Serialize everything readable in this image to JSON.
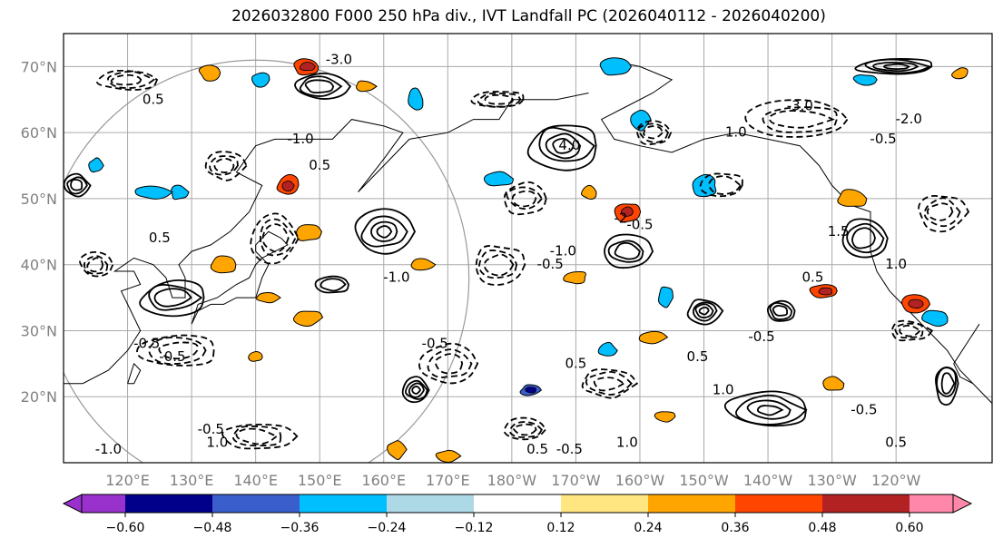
{
  "title": "2026032800 F000 250 hPa div., IVT Landfall PC (2026040112 - 2026040200)",
  "chart_data": {
    "type": "contour",
    "variable": "250 hPa divergence with IVT landfall PC contours",
    "lat_ticks": [
      "20°N",
      "30°N",
      "40°N",
      "50°N",
      "60°N",
      "70°N"
    ],
    "lon_ticks": [
      "120°E",
      "130°E",
      "140°E",
      "150°E",
      "160°E",
      "170°E",
      "180°W",
      "170°W",
      "160°W",
      "150°W",
      "140°W",
      "130°W",
      "120°W"
    ],
    "contour_labels": [
      {
        "text": "-3.0",
        "lon": 153,
        "lat": 71
      },
      {
        "text": "0.5",
        "lon": 124,
        "lat": 65
      },
      {
        "text": "0.5",
        "lon": 150,
        "lat": 55
      },
      {
        "text": "-1.0",
        "lon": 147,
        "lat": 59
      },
      {
        "text": "4.0",
        "lon": -171,
        "lat": 58
      },
      {
        "text": "-3.0",
        "lon": -135,
        "lat": 64
      },
      {
        "text": "-2.0",
        "lon": -118,
        "lat": 62
      },
      {
        "text": "-0.5",
        "lon": -122,
        "lat": 59
      },
      {
        "text": "1.0",
        "lon": -145,
        "lat": 60
      },
      {
        "text": "-0.5",
        "lon": -160,
        "lat": 46
      },
      {
        "text": "-2",
        "lon": -163,
        "lat": 47
      },
      {
        "text": "1.5",
        "lon": -129,
        "lat": 45
      },
      {
        "text": "0.5",
        "lon": 125,
        "lat": 44
      },
      {
        "text": "-1.0",
        "lon": -172,
        "lat": 42
      },
      {
        "text": "-0.5",
        "lon": -174,
        "lat": 40
      },
      {
        "text": "0.5",
        "lon": -133,
        "lat": 38
      },
      {
        "text": "1.0",
        "lon": -120,
        "lat": 40
      },
      {
        "text": "-1.0",
        "lon": 162,
        "lat": 38
      },
      {
        "text": "-0.5",
        "lon": 123,
        "lat": 28
      },
      {
        "text": "-0.5",
        "lon": 127,
        "lat": 26
      },
      {
        "text": "-0.5",
        "lon": 168,
        "lat": 28
      },
      {
        "text": "0.5",
        "lon": -170,
        "lat": 25
      },
      {
        "text": "0.5",
        "lon": -151,
        "lat": 26
      },
      {
        "text": "-0.5",
        "lon": -141,
        "lat": 29
      },
      {
        "text": "1.0",
        "lon": -147,
        "lat": 21
      },
      {
        "text": "-0.5",
        "lon": 133,
        "lat": 15
      },
      {
        "text": "1.0",
        "lon": 134,
        "lat": 13
      },
      {
        "text": "-1.0",
        "lon": 117,
        "lat": 12
      },
      {
        "text": "0.5",
        "lon": -176,
        "lat": 12
      },
      {
        "text": "-0.5",
        "lon": -171,
        "lat": 12
      },
      {
        "text": "1.0",
        "lon": -162,
        "lat": 13
      },
      {
        "text": "-0.5",
        "lon": -125,
        "lat": 18
      },
      {
        "text": "0.5",
        "lon": -120,
        "lat": 13
      }
    ],
    "colorbar": {
      "ticks": [
        -0.6,
        -0.48,
        -0.36,
        -0.24,
        -0.12,
        0.12,
        0.24,
        0.36,
        0.48,
        0.6
      ],
      "tick_labels": [
        "−0.60",
        "−0.48",
        "−0.36",
        "−0.24",
        "−0.12",
        "0.12",
        "0.24",
        "0.36",
        "0.48",
        "0.60"
      ],
      "colors": [
        "#9932cc",
        "#00008b",
        "#3a5fcd",
        "#00bfff",
        "#add8e6",
        "#ffffff",
        "#ffe680",
        "#ffa500",
        "#ff4500",
        "#b22222",
        "#ff88aa"
      ]
    },
    "fill_blobs": [
      {
        "lon": 133,
        "lat": 69,
        "value": 0.3
      },
      {
        "lon": 148,
        "lat": 70,
        "value": 0.38
      },
      {
        "lon": 157,
        "lat": 67,
        "value": 0.26
      },
      {
        "lon": 165,
        "lat": 65,
        "value": -0.28
      },
      {
        "lon": 141,
        "lat": 68,
        "value": -0.3
      },
      {
        "lon": 145,
        "lat": 52,
        "value": 0.4
      },
      {
        "lon": 128,
        "lat": 51,
        "value": -0.25
      },
      {
        "lon": 124,
        "lat": 51,
        "value": -0.3
      },
      {
        "lon": 148,
        "lat": 45,
        "value": 0.3
      },
      {
        "lon": 135,
        "lat": 40,
        "value": 0.3
      },
      {
        "lon": 142,
        "lat": 35,
        "value": 0.3
      },
      {
        "lon": 148,
        "lat": 32,
        "value": 0.28
      },
      {
        "lon": 140,
        "lat": 26,
        "value": 0.3
      },
      {
        "lon": 166,
        "lat": 40,
        "value": 0.3
      },
      {
        "lon": -162,
        "lat": 48,
        "value": 0.4
      },
      {
        "lon": -168,
        "lat": 51,
        "value": 0.26
      },
      {
        "lon": -156,
        "lat": 35,
        "value": -0.3
      },
      {
        "lon": -158,
        "lat": 29,
        "value": 0.3
      },
      {
        "lon": -165,
        "lat": 27,
        "value": -0.25
      },
      {
        "lon": -177,
        "lat": 21,
        "value": -0.38
      },
      {
        "lon": -131,
        "lat": 36,
        "value": 0.36
      },
      {
        "lon": -117,
        "lat": 34,
        "value": 0.38
      },
      {
        "lon": -160,
        "lat": 62,
        "value": -0.3
      },
      {
        "lon": -164,
        "lat": 70,
        "value": -0.26
      },
      {
        "lon": -125,
        "lat": 68,
        "value": -0.28
      },
      {
        "lon": -110,
        "lat": 69,
        "value": 0.28
      },
      {
        "lon": -127,
        "lat": 50,
        "value": 0.3
      },
      {
        "lon": -114,
        "lat": 32,
        "value": -0.25
      },
      {
        "lon": -130,
        "lat": 22,
        "value": 0.3
      },
      {
        "lon": -156,
        "lat": 17,
        "value": 0.3
      },
      {
        "lon": 170,
        "lat": 11,
        "value": 0.3
      },
      {
        "lon": 162,
        "lat": 12,
        "value": 0.28
      },
      {
        "lon": 115,
        "lat": 55,
        "value": -0.3
      },
      {
        "lon": -150,
        "lat": 52,
        "value": -0.26
      },
      {
        "lon": 178,
        "lat": 53,
        "value": -0.25
      },
      {
        "lon": -170,
        "lat": 38,
        "value": 0.28
      }
    ]
  }
}
